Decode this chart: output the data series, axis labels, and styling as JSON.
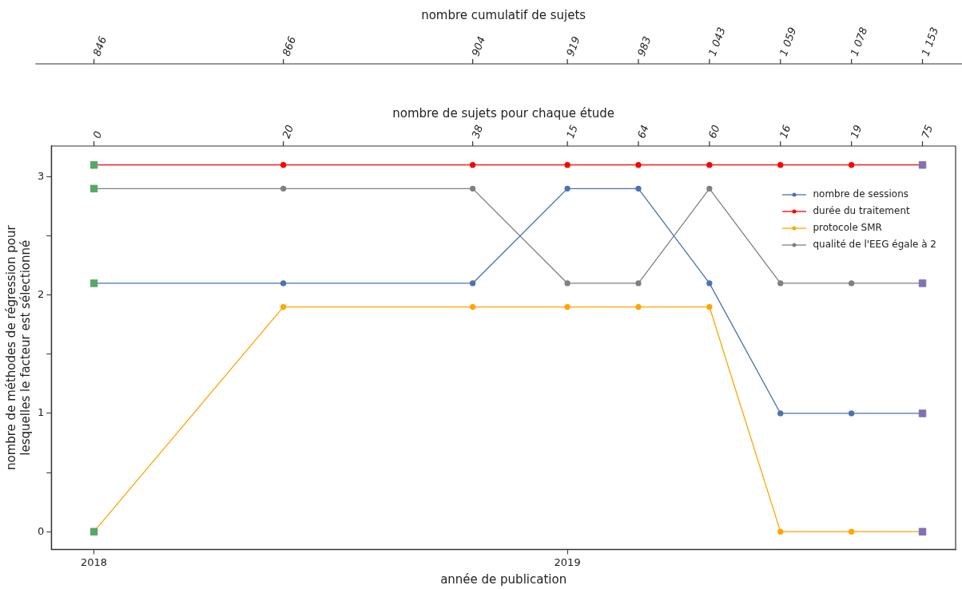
{
  "chart_data": {
    "type": "line",
    "xlabel": "année de publication",
    "ylabel": "nombre de méthodes de régression pour\nlesquelles le facteur est sélectionné",
    "x2label": "nombre de sujets pour chaque étude",
    "annotations": [
      "nombre cumulatif de sujets",
      "0",
      "20",
      "38",
      "15",
      "64",
      "60",
      "16",
      "19",
      "75",
      "846",
      "866",
      "904",
      "919",
      "983",
      "1 043",
      "1 059",
      "1 078",
      "1 153"
    ],
    "x": [
      2018,
      2018.4,
      2018.8,
      2019,
      2019.15,
      2019.3,
      2019.45,
      2019.6,
      2019.75
    ],
    "xlim": [
      2017.91,
      2019.82
    ],
    "xticks": [
      2018,
      2019
    ],
    "ylim": [
      -0.15,
      3.26
    ],
    "yticks": [
      0,
      {
        "value": 0.5,
        "label": null
      },
      1,
      {
        "value": 1.5,
        "label": null
      },
      2,
      {
        "value": 2.5,
        "label": null
      },
      3
    ],
    "series": [
      {
        "name": "nombre de sessions",
        "color": "#4c72b0",
        "values": [
          2.1,
          2.1,
          2.1,
          2.9,
          2.9,
          2.1,
          1,
          1,
          1
        ]
      },
      {
        "name": "durée du traitement",
        "color": "#ff0000",
        "values": [
          3.1,
          3.1,
          3.1,
          3.1,
          3.1,
          3.1,
          3.1,
          3.1,
          3.1
        ]
      },
      {
        "name": "protocole SMR",
        "color": "#ffa500",
        "values": [
          0,
          1.9,
          1.9,
          1.9,
          1.9,
          1.9,
          0,
          0,
          0
        ]
      },
      {
        "name": "qualité de l'EEG égale à 2",
        "color": "#808080",
        "values": [
          2.9,
          2.9,
          2.9,
          2.1,
          2.1,
          2.9,
          2.1,
          2.1,
          2.1
        ]
      },
      {
        "type": "scatter",
        "marker": "square",
        "color": "#55a868",
        "values": [
          3.1,
          null,
          null,
          null,
          null,
          null,
          null,
          null,
          null
        ]
      },
      {
        "type": "scatter",
        "marker": "square",
        "color": "#55a868",
        "values": [
          2.9,
          null,
          null,
          null,
          null,
          null,
          null,
          null,
          null
        ]
      },
      {
        "type": "scatter",
        "marker": "square",
        "color": "#55a868",
        "values": [
          2.1,
          null,
          null,
          null,
          null,
          null,
          null,
          null,
          null
        ]
      },
      {
        "type": "scatter",
        "marker": "square",
        "color": "#55a868",
        "values": [
          0,
          null,
          null,
          null,
          null,
          null,
          null,
          null,
          null
        ]
      },
      {
        "type": "scatter",
        "marker": "square",
        "color": "#8172b2",
        "values": [
          null,
          null,
          null,
          null,
          null,
          null,
          null,
          null,
          3.1
        ]
      },
      {
        "type": "scatter",
        "marker": "square",
        "color": "#8172b2",
        "values": [
          null,
          null,
          null,
          null,
          null,
          null,
          null,
          null,
          2.1
        ]
      },
      {
        "type": "scatter",
        "marker": "square",
        "color": "#8172b2",
        "values": [
          null,
          null,
          null,
          null,
          null,
          null,
          null,
          null,
          1
        ]
      },
      {
        "type": "scatter",
        "marker": "square",
        "color": "#8172b2",
        "values": [
          null,
          null,
          null,
          null,
          null,
          null,
          null,
          null,
          0
        ]
      }
    ],
    "marker": "circle",
    "legend": "top right",
    "grid": false
  }
}
